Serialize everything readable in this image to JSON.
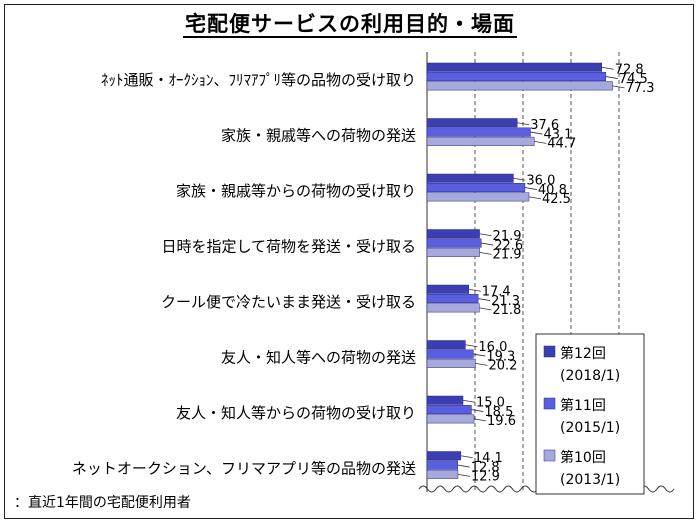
{
  "title": "宅配便サービスの利用目的・場面",
  "footnote": "：直近1年間の宅配便利用者",
  "colors": {
    "s12": "#3b3fb2",
    "s11": "#5a5ee0",
    "s10": "#a5a9dc"
  },
  "chart_data": {
    "type": "bar",
    "orientation": "horizontal",
    "title": "宅配便サービスの利用目的・場面",
    "categories": [
      "ﾈｯﾄ通販・ｵｰｸｼｮﾝ、ﾌﾘﾏｱﾌﾟﾘ等の品物の受け取り",
      "家族・親戚等への荷物の発送",
      "家族・親戚等からの荷物の受け取り",
      "日時を指定して荷物を発送・受け取る",
      "クール便で冷たいまま発送・受け取る",
      "友人・知人等への荷物の発送",
      "友人・知人等からの荷物の受け取り",
      "ネットオークション、フリマアプリ等の品物の発送"
    ],
    "series": [
      {
        "name": "第12回",
        "sub": "(2018/1)",
        "values": [
          72.8,
          37.6,
          36.0,
          21.9,
          17.4,
          16.0,
          15.0,
          14.1
        ],
        "labels": [
          "72.8",
          "37.6",
          "36.0",
          "21.9",
          "17.4",
          "16.0",
          "15.0",
          "14.1"
        ]
      },
      {
        "name": "第11回",
        "sub": "(2015/1)",
        "values": [
          74.5,
          43.1,
          40.8,
          22.6,
          21.3,
          19.3,
          18.5,
          12.8
        ],
        "labels": [
          "74.5",
          "43.1",
          "40.8",
          "22.6",
          "21.3",
          "19.3",
          "18.5",
          "12.8"
        ]
      },
      {
        "name": "第10回",
        "sub": "(2013/1)",
        "values": [
          77.3,
          44.7,
          42.5,
          21.9,
          21.8,
          20.2,
          19.6,
          12.9
        ],
        "labels": [
          "77.3",
          "44.7",
          "42.5",
          "21.9",
          "21.8",
          "20.2",
          "19.6",
          "12.9"
        ]
      }
    ],
    "legend_position": "bottom-right",
    "grid": true,
    "axis_break": true
  }
}
